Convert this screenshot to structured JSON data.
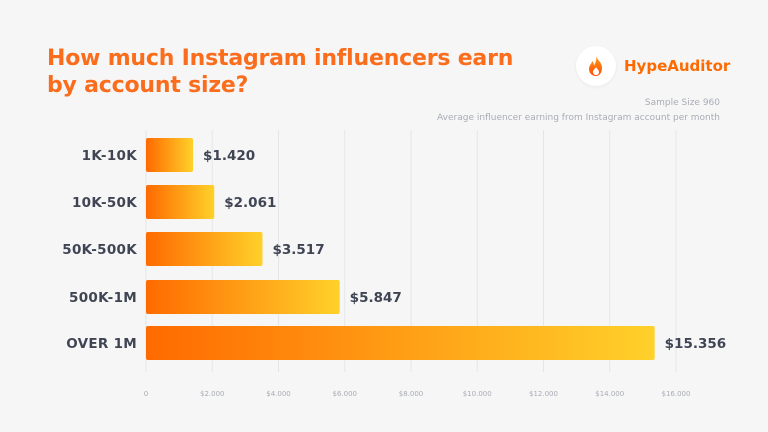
{
  "header": {
    "title": "How much Instagram influencers earn by account size?",
    "brand_name": "HypeAuditor",
    "brand_icon": "flame-icon",
    "sample_size": "Sample Size 960",
    "description": "Average influencer earning from Instagram account per month"
  },
  "colors": {
    "title": "#fa6d1c",
    "bar_start": "#ff6a00",
    "bar_end": "#ffd12a",
    "text_dark": "#3f4553",
    "axis_tick": "#a9acb5",
    "grid": "#e4e5e9"
  },
  "chart_data": {
    "type": "bar",
    "orientation": "horizontal",
    "categories": [
      "1K-10K",
      "10K-50K",
      "50K-500K",
      "500K-1M",
      "OVER 1M"
    ],
    "values": [
      1420,
      2061,
      3517,
      5847,
      15356
    ],
    "value_labels": [
      "$1.420",
      "$2.061",
      "$3.517",
      "$5.847",
      "$15.356"
    ],
    "xlim": [
      0,
      16000
    ],
    "xticks": [
      0,
      2000,
      4000,
      6000,
      8000,
      10000,
      12000,
      14000,
      16000
    ],
    "xtick_labels": [
      "0",
      "$2.000",
      "$4.000",
      "$6.000",
      "$8.000",
      "$10.000",
      "$12.000",
      "$14.000",
      "$16.000"
    ],
    "grid": true,
    "gradient": [
      "#ff6a00",
      "#ffd12a"
    ]
  }
}
